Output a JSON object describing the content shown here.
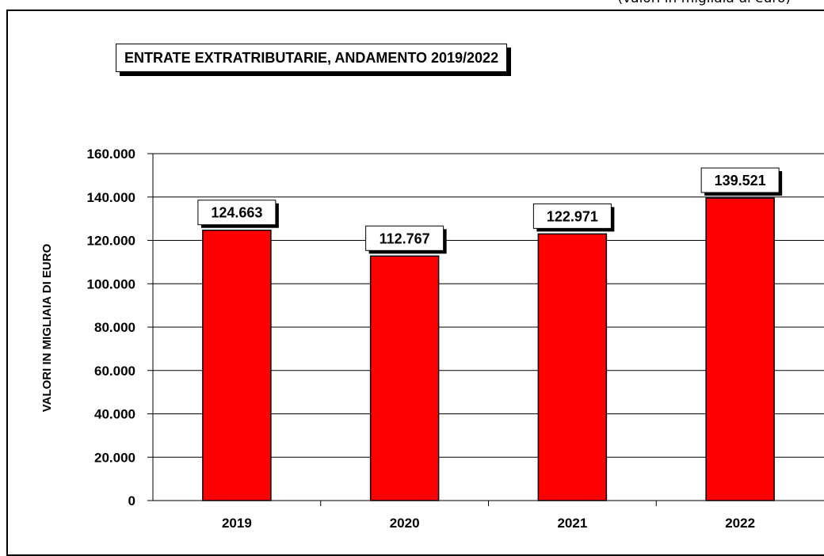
{
  "unit_note": "(valori in migliaia di euro)",
  "colors": {
    "bar": "#ff0000",
    "grid": "#000000",
    "background": "#ffffff"
  },
  "chart_data": {
    "type": "bar",
    "title": "ENTRATE EXTRATRIBUTARIE, ANDAMENTO 2019/2022",
    "xlabel": "",
    "ylabel": "VALORI IN MIGLIAIA DI EURO",
    "categories": [
      "2019",
      "2020",
      "2021",
      "2022"
    ],
    "values": [
      124663,
      112767,
      122971,
      139521
    ],
    "value_labels": [
      "124.663",
      "112.767",
      "122.971",
      "139.521"
    ],
    "ylim": [
      0,
      160000
    ],
    "yticks": [
      0,
      20000,
      40000,
      60000,
      80000,
      100000,
      120000,
      140000,
      160000
    ],
    "ytick_labels": [
      "0",
      "20.000",
      "40.000",
      "60.000",
      "80.000",
      "100.000",
      "120.000",
      "140.000",
      "160.000"
    ],
    "grid": true,
    "legend": "none"
  }
}
